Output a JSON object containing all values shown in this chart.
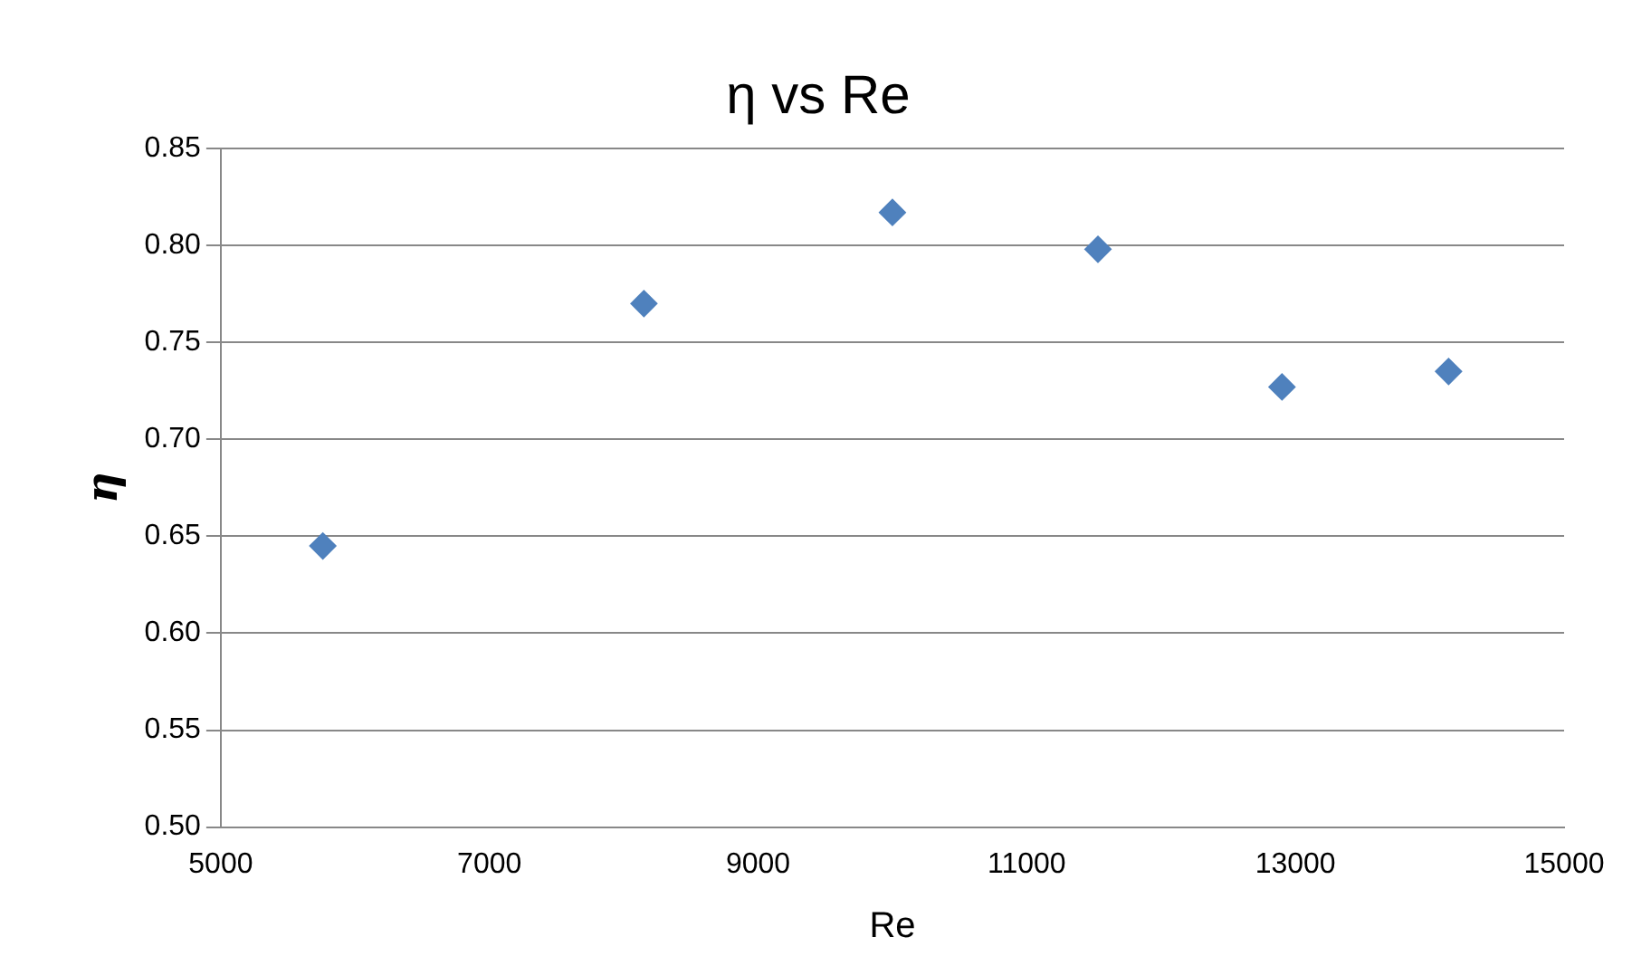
{
  "chart_data": {
    "type": "scatter",
    "title": "η vs Re",
    "xlabel": "Re",
    "ylabel": "η",
    "x": [
      5760,
      8150,
      10000,
      11530,
      12900,
      14140
    ],
    "values": [
      0.645,
      0.77,
      0.817,
      0.798,
      0.727,
      0.735
    ],
    "color": "#4f81bd",
    "marker": "diamond",
    "grid": "y",
    "legend": false,
    "xlim": [
      5000,
      15000
    ],
    "xticks": [
      5000,
      7000,
      9000,
      11000,
      13000,
      15000
    ],
    "ylim": [
      0.5,
      0.85
    ],
    "yticks": [
      {
        "value": 0.5,
        "label": "0.50"
      },
      {
        "value": 0.55,
        "label": "0.55"
      },
      {
        "value": 0.6,
        "label": "0.60"
      },
      {
        "value": 0.65,
        "label": "0.65"
      },
      {
        "value": 0.7,
        "label": "0.70"
      },
      {
        "value": 0.75,
        "label": "0.75"
      },
      {
        "value": 0.8,
        "label": "0.80"
      },
      {
        "value": 0.85,
        "label": "0.85"
      }
    ]
  }
}
